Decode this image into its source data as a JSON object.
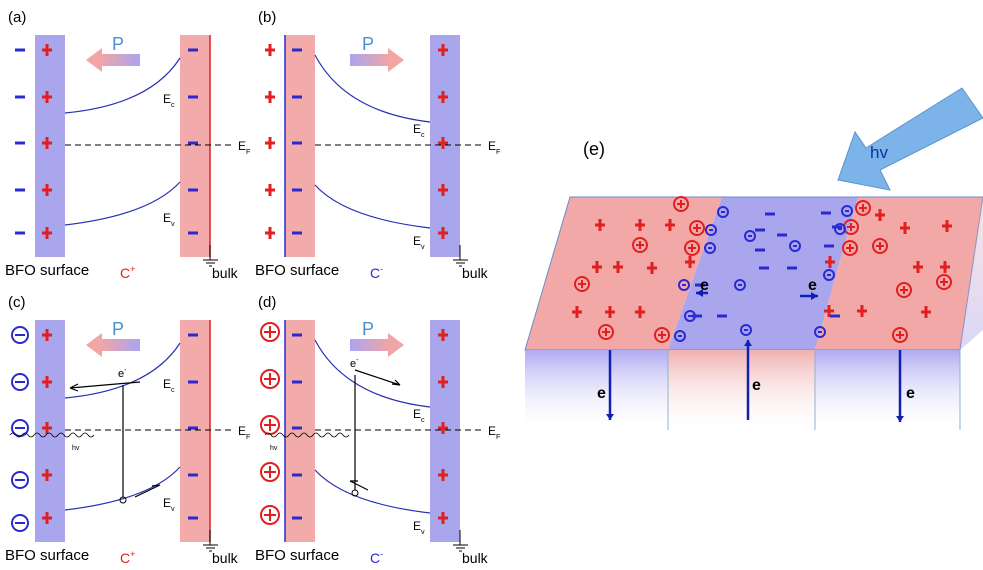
{
  "panels": [
    {
      "label": "(a)",
      "polarization": "P",
      "conduction": {
        "main": "E",
        "sub": "c"
      },
      "fermi": {
        "main": "E",
        "sub": "F"
      },
      "valence": {
        "main": "E",
        "sub": "v"
      },
      "surface": "BFO surface",
      "carrier": {
        "main": "C",
        "sup": "+"
      },
      "bulk": "bulk"
    },
    {
      "label": "(b)",
      "polarization": "P",
      "conduction": {
        "main": "E",
        "sub": "c"
      },
      "fermi": {
        "main": "E",
        "sub": "F"
      },
      "valence": {
        "main": "E",
        "sub": "v"
      },
      "surface": "BFO surface",
      "carrier": {
        "main": "C",
        "sup": "-"
      },
      "bulk": "bulk"
    },
    {
      "label": "(c)",
      "polarization": "P",
      "conduction": {
        "main": "E",
        "sub": "c"
      },
      "fermi": {
        "main": "E",
        "sub": "F"
      },
      "valence": {
        "main": "E",
        "sub": "v"
      },
      "surface": "BFO surface",
      "carrier": {
        "main": "C",
        "sup": "+"
      },
      "bulk": "bulk",
      "light": "hv",
      "electron": {
        "main": "e",
        "sup": "-"
      }
    },
    {
      "label": "(d)",
      "polarization": "P",
      "conduction": {
        "main": "E",
        "sub": "c"
      },
      "fermi": {
        "main": "E",
        "sub": "F"
      },
      "valence": {
        "main": "E",
        "sub": "v"
      },
      "surface": "BFO surface",
      "carrier": {
        "main": "C",
        "sup": "-"
      },
      "bulk": "bulk",
      "light": "hv",
      "electron": {
        "main": "e",
        "sup": "-"
      }
    }
  ],
  "panel_e": {
    "label": "(e)",
    "light": "hv",
    "electrons": [
      "e",
      "e",
      "e",
      "e",
      "e"
    ]
  }
}
